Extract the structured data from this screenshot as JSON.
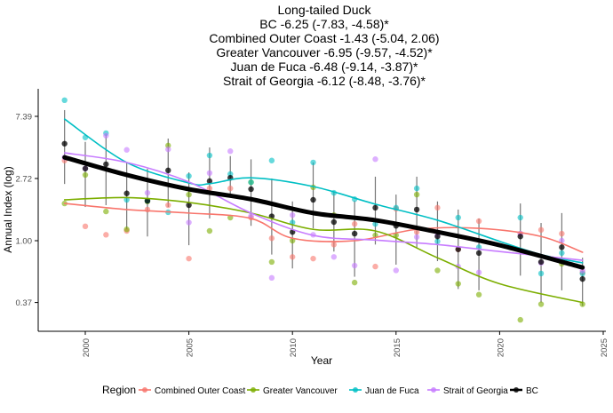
{
  "chart_data": {
    "type": "scatter",
    "title_lines": [
      "Long-tailed Duck",
      "BC -6.25 (-7.83, -4.58)*",
      "Combined Outer Coast -1.43 (-5.04, 2.06)",
      "Greater Vancouver -6.95 (-9.57, -4.52)*",
      "Juan de Fuca -6.48 (-9.14, -3.87)*",
      "Strait of Georgia -6.12 (-8.48, -3.76)*"
    ],
    "xlabel": "Year",
    "ylabel": "Annual Index (log)",
    "xlim": [
      1997.5,
      2025
    ],
    "ylim": [
      0.26,
      12.5
    ],
    "y_scale": "log",
    "x_ticks": [
      "2000",
      "2005",
      "2010",
      "2015",
      "2020",
      "2025"
    ],
    "y_ticks": [
      "0.37",
      "1.00",
      "2.72",
      "7.39"
    ],
    "grid": false,
    "legend": {
      "title": "Region",
      "position": "bottom"
    },
    "series": [
      {
        "name": "Combined Outer Coast",
        "color": "#F8766D",
        "points": {
          "x": [
            1999,
            2000,
            2001,
            2002,
            2003,
            2004,
            2005,
            2006,
            2007,
            2008,
            2009,
            2010,
            2011,
            2012,
            2013,
            2014,
            2015,
            2016,
            2017,
            2018,
            2019,
            2021,
            2022,
            2023,
            2024
          ],
          "y": [
            3.63,
            1.26,
            1.1,
            1.17,
            1.65,
            1.77,
            0.75,
            2.32,
            2.32,
            1.45,
            1.04,
            0.77,
            0.75,
            0.94,
            1.31,
            0.66,
            1.67,
            1.15,
            1.7,
            0.87,
            1.37,
            1.12,
            1.19,
            1.12,
            0.6
          ]
        },
        "smooth": {
          "x": [
            1999,
            2002,
            2005,
            2008,
            2010,
            2013,
            2016,
            2019,
            2022,
            2024
          ],
          "y": [
            1.82,
            1.65,
            1.56,
            1.43,
            1.04,
            1.0,
            1.2,
            1.22,
            1.07,
            0.83
          ]
        }
      },
      {
        "name": "Greater Vancouver",
        "color": "#7CAE00",
        "points": {
          "x": [
            1999,
            2000,
            2001,
            2002,
            2003,
            2004,
            2005,
            2006,
            2007,
            2008,
            2009,
            2010,
            2011,
            2012,
            2013,
            2014,
            2015,
            2016,
            2017,
            2018,
            2019,
            2021,
            2022,
            2023,
            2024
          ],
          "y": [
            1.82,
            2.88,
            1.6,
            1.2,
            1.88,
            4.62,
            2.1,
            1.17,
            1.45,
            2.56,
            0.71,
            1.0,
            2.36,
            1.51,
            0.51,
            1.09,
            1.09,
            2.1,
            0.62,
            0.5,
            0.42,
            0.28,
            0.36,
            0.69,
            0.36
          ]
        },
        "smooth": {
          "x": [
            1999,
            2002,
            2005,
            2008,
            2011,
            2014,
            2017,
            2020,
            2024
          ],
          "y": [
            1.93,
            2.0,
            1.85,
            1.56,
            1.2,
            1.17,
            0.76,
            0.5,
            0.37
          ]
        }
      },
      {
        "name": "Juan de Fuca",
        "color": "#00BFC4",
        "points": {
          "x": [
            1999,
            2000,
            2001,
            2002,
            2003,
            2004,
            2005,
            2006,
            2007,
            2008,
            2009,
            2010,
            2011,
            2012,
            2013,
            2014,
            2015,
            2016,
            2017,
            2018,
            2019,
            2021,
            2022,
            2023,
            2024
          ],
          "y": [
            9.58,
            5.26,
            5.64,
            1.93,
            1.9,
            1.58,
            2.83,
            3.94,
            2.92,
            2.56,
            3.63,
            1.34,
            3.52,
            2.16,
            1.95,
            1.31,
            1.7,
            2.32,
            0.99,
            1.45,
            0.9,
            1.45,
            0.59,
            0.82,
            0.59
          ]
        },
        "smooth": {
          "x": [
            1999,
            2002,
            2005,
            2006,
            2008,
            2011,
            2014,
            2017,
            2020,
            2022,
            2024
          ],
          "y": [
            7.07,
            3.52,
            2.53,
            2.5,
            2.75,
            2.39,
            1.8,
            1.39,
            0.99,
            0.8,
            0.7
          ]
        }
      },
      {
        "name": "Strait of Georgia",
        "color": "#C77CFF",
        "points": {
          "x": [
            1999,
            2000,
            2001,
            2002,
            2003,
            2004,
            2005,
            2006,
            2007,
            2008,
            2009,
            2010,
            2011,
            2012,
            2013,
            2014,
            2015,
            2016,
            2017,
            2018,
            2019,
            2021,
            2022,
            2023,
            2024
          ],
          "y": [
            3.82,
            3.19,
            5.42,
            4.31,
            2.16,
            4.35,
            1.34,
            2.97,
            4.22,
            1.49,
            0.55,
            1.51,
            1.1,
            0.77,
            0.67,
            3.71,
            0.62,
            1.06,
            1.09,
            0.66,
            0.6,
            1.12,
            0.7,
            1.0,
            0.62
          ]
        },
        "smooth": {
          "x": [
            1999,
            2002,
            2005,
            2008,
            2011,
            2014,
            2017,
            2020,
            2024
          ],
          "y": [
            4.11,
            3.52,
            2.57,
            1.56,
            1.09,
            1.01,
            0.94,
            0.84,
            0.73
          ]
        }
      },
      {
        "name": "BC",
        "color": "#000000",
        "points": {
          "x": [
            1999,
            2000,
            2001,
            2002,
            2003,
            2004,
            2005,
            2006,
            2007,
            2008,
            2009,
            2010,
            2011,
            2012,
            2013,
            2014,
            2015,
            2016,
            2017,
            2018,
            2019,
            2021,
            2022,
            2023,
            2024
          ],
          "y": [
            4.76,
            3.19,
            3.42,
            2.14,
            1.9,
            3.1,
            1.77,
            2.61,
            2.75,
            2.29,
            1.48,
            1.15,
            1.93,
            1.35,
            1.12,
            1.7,
            1.27,
            1.65,
            1.07,
            0.87,
            0.82,
            1.07,
            0.71,
            0.9,
            0.54
          ],
          "upper": [
            8.17,
            4.9,
            5.6,
            3.52,
            3.18,
            5.17,
            3.0,
            4.48,
            3.9,
            3.7,
            2.72,
            1.88,
            3.52,
            2.2,
            1.9,
            2.8,
            2.1,
            2.8,
            1.88,
            1.65,
            1.43,
            1.82,
            1.33,
            1.56,
            0.76
          ],
          "lower": [
            2.49,
            1.72,
            1.77,
            1.2,
            1.07,
            1.72,
            0.93,
            1.43,
            2.0,
            1.27,
            0.8,
            0.64,
            1.22,
            0.84,
            0.56,
            0.94,
            0.68,
            0.89,
            0.72,
            0.46,
            0.45,
            0.57,
            0.37,
            0.45,
            0.35
          ]
        },
        "smooth": {
          "x": [
            1999,
            2002,
            2005,
            2008,
            2011,
            2014,
            2017,
            2020,
            2024
          ],
          "y": [
            3.82,
            2.88,
            2.29,
            1.95,
            1.56,
            1.39,
            1.15,
            0.93,
            0.65
          ]
        }
      }
    ]
  }
}
